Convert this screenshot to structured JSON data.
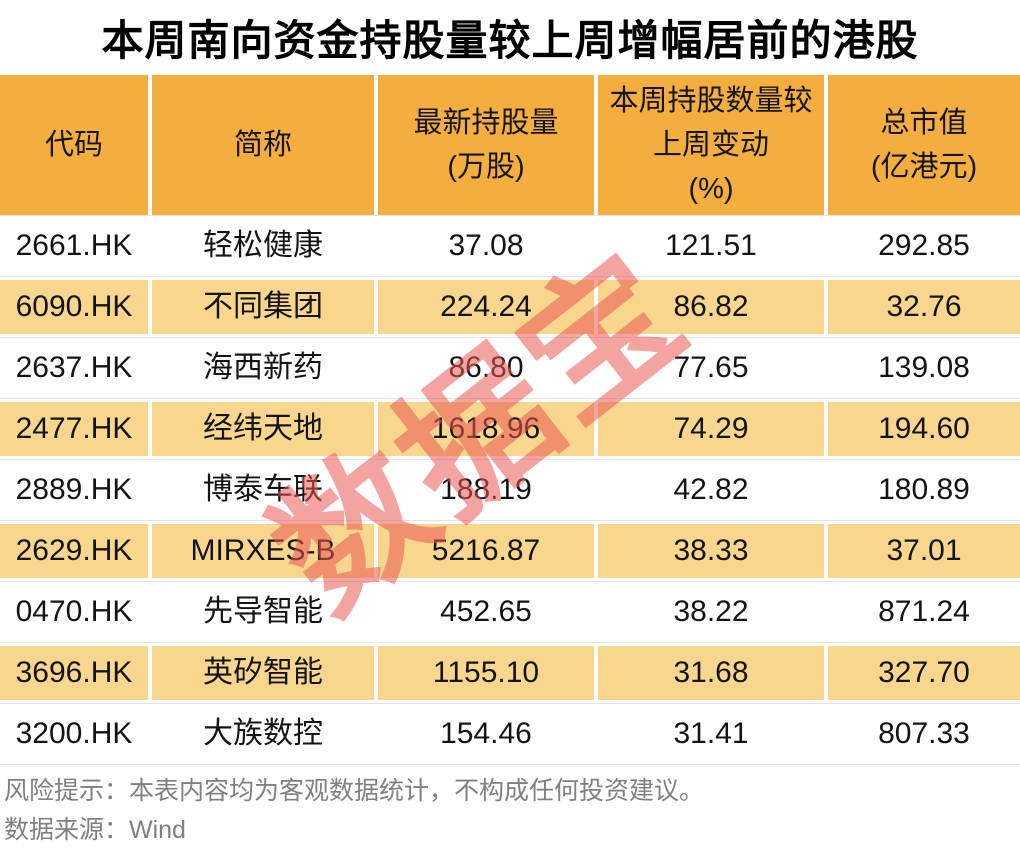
{
  "title": "本周南向资金持股量较上周增幅居前的港股",
  "watermark": {
    "text": "数据宝"
  },
  "colors": {
    "header_bg": "#F4AE3E",
    "alt_row_bg": "#F8D68D",
    "row_line": "#E3E3E3",
    "footer_text": "#808080",
    "watermark": "#E95852"
  },
  "table": {
    "headers": [
      "代码",
      "简称",
      "最新持股量\n(万股)",
      "本周持股数量较\n上周变动\n(%)",
      "总市值\n(亿港元)"
    ],
    "rows": [
      [
        "2661.HK",
        "轻松健康",
        "37.08",
        "121.51",
        "292.85"
      ],
      [
        "6090.HK",
        "不同集团",
        "224.24",
        "86.82",
        "32.76"
      ],
      [
        "2637.HK",
        "海西新药",
        "86.80",
        "77.65",
        "139.08"
      ],
      [
        "2477.HK",
        "经纬天地",
        "1618.96",
        "74.29",
        "194.60"
      ],
      [
        "2889.HK",
        "博泰车联",
        "188.19",
        "42.82",
        "180.89"
      ],
      [
        "2629.HK",
        "MIRXES-B",
        "5216.87",
        "38.33",
        "37.01"
      ],
      [
        "0470.HK",
        "先导智能",
        "452.65",
        "38.22",
        "871.24"
      ],
      [
        "3696.HK",
        "英矽智能",
        "1155.10",
        "31.68",
        "327.70"
      ],
      [
        "3200.HK",
        "大族数控",
        "154.46",
        "31.41",
        "807.33"
      ]
    ]
  },
  "footer": {
    "risk_note": "风险提示：本表内容均为客观数据统计，不构成任何投资建议。",
    "source": "数据来源：Wind"
  },
  "chart_data": {
    "type": "table",
    "title": "本周南向资金持股量较上周增幅居前的港股",
    "columns": [
      "代码",
      "简称",
      "最新持股量(万股)",
      "本周持股数量较上周变动(%)",
      "总市值(亿港元)"
    ],
    "rows": [
      [
        "2661.HK",
        "轻松健康",
        37.08,
        121.51,
        292.85
      ],
      [
        "6090.HK",
        "不同集团",
        224.24,
        86.82,
        32.76
      ],
      [
        "2637.HK",
        "海西新药",
        86.8,
        77.65,
        139.08
      ],
      [
        "2477.HK",
        "经纬天地",
        1618.96,
        74.29,
        194.6
      ],
      [
        "2889.HK",
        "博泰车联",
        188.19,
        42.82,
        180.89
      ],
      [
        "2629.HK",
        "MIRXES-B",
        5216.87,
        38.33,
        37.01
      ],
      [
        "0470.HK",
        "先导智能",
        452.65,
        38.22,
        871.24
      ],
      [
        "3696.HK",
        "英矽智能",
        1155.1,
        31.68,
        327.7
      ],
      [
        "3200.HK",
        "大族数控",
        154.46,
        31.41,
        807.33
      ]
    ],
    "notes": [
      "风险提示：本表内容均为客观数据统计，不构成任何投资建议。",
      "数据来源：Wind"
    ],
    "watermark": "数据宝"
  }
}
